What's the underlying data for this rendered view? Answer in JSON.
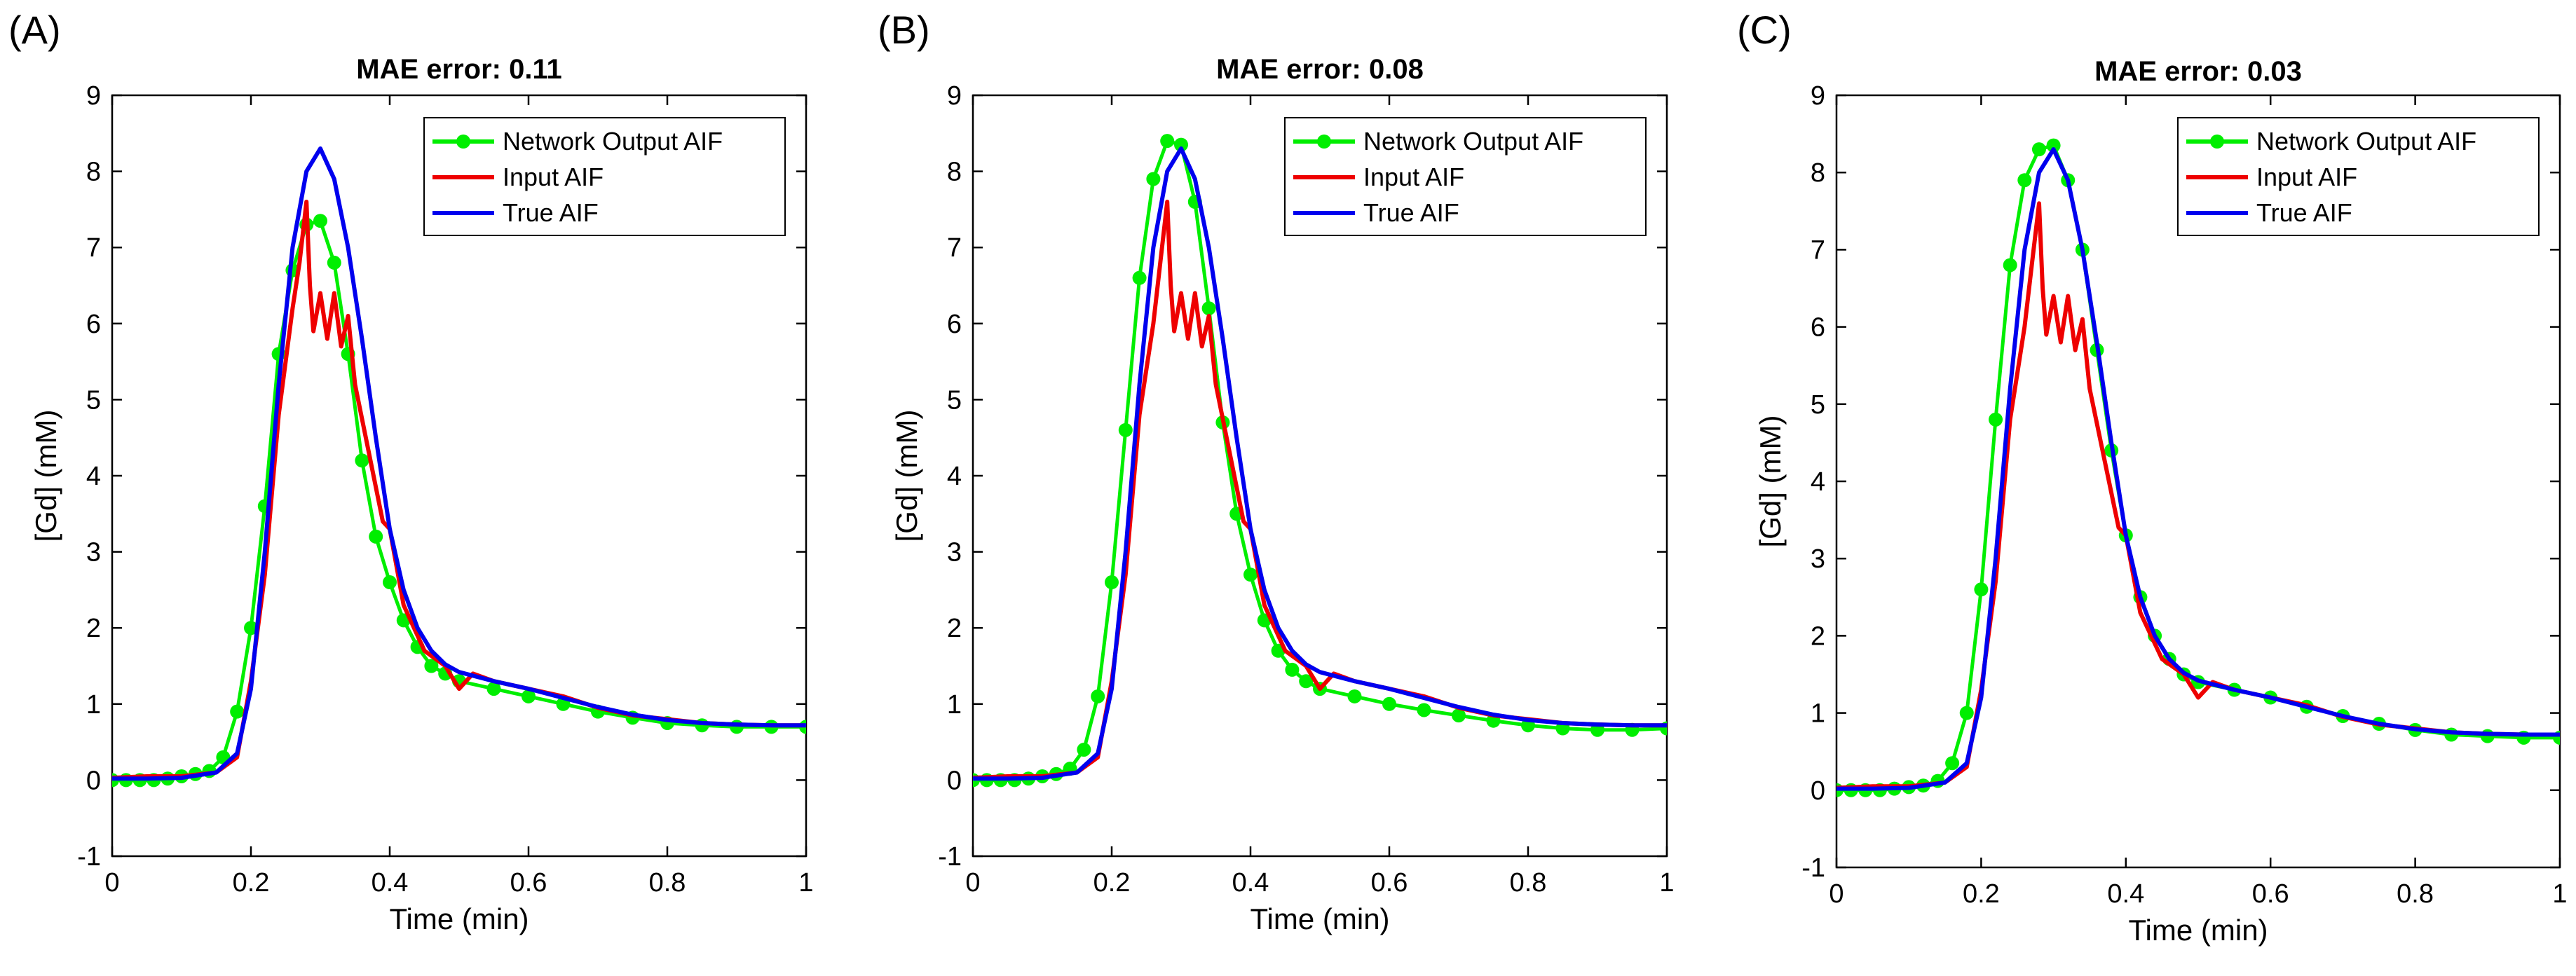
{
  "chart_data": [
    {
      "panel": "(A)",
      "type": "line",
      "title": "MAE error: 0.11",
      "xlabel": "Time (min)",
      "ylabel": "[Gd] (mM)",
      "xlim": [
        0,
        1
      ],
      "ylim": [
        -1,
        9
      ],
      "xticks": [
        "0",
        "0.2",
        "0.4",
        "0.6",
        "0.8",
        "1"
      ],
      "yticks": [
        "-1",
        "0",
        "1",
        "2",
        "3",
        "4",
        "5",
        "6",
        "7",
        "8",
        "9"
      ],
      "legend_position": "top-right",
      "series": [
        {
          "name": "Network Output AIF",
          "color": "#00ee00",
          "marker": "circle",
          "x": [
            0,
            0.02,
            0.04,
            0.06,
            0.08,
            0.1,
            0.12,
            0.14,
            0.16,
            0.18,
            0.2,
            0.22,
            0.24,
            0.26,
            0.28,
            0.3,
            0.32,
            0.34,
            0.36,
            0.38,
            0.4,
            0.42,
            0.44,
            0.46,
            0.48,
            0.5,
            0.55,
            0.6,
            0.65,
            0.7,
            0.75,
            0.8,
            0.85,
            0.9,
            0.95,
            1.0
          ],
          "y": [
            0.0,
            0.0,
            0.0,
            0.0,
            0.02,
            0.05,
            0.08,
            0.12,
            0.3,
            0.9,
            2.0,
            3.6,
            5.6,
            6.7,
            7.3,
            7.35,
            6.8,
            5.6,
            4.2,
            3.2,
            2.6,
            2.1,
            1.75,
            1.5,
            1.4,
            1.3,
            1.2,
            1.1,
            1.0,
            0.9,
            0.82,
            0.75,
            0.72,
            0.7,
            0.7,
            0.7
          ]
        },
        {
          "name": "Input AIF",
          "color": "#ee0000",
          "marker": "none",
          "x": [
            0,
            0.05,
            0.1,
            0.15,
            0.18,
            0.2,
            0.22,
            0.24,
            0.26,
            0.27,
            0.28,
            0.285,
            0.29,
            0.3,
            0.31,
            0.32,
            0.33,
            0.34,
            0.35,
            0.37,
            0.39,
            0.4,
            0.42,
            0.45,
            0.48,
            0.5,
            0.52,
            0.55,
            0.6,
            0.65,
            0.7,
            0.75,
            0.8,
            0.85,
            0.9,
            0.95,
            1.0
          ],
          "y": [
            0.03,
            0.05,
            0.05,
            0.1,
            0.3,
            1.3,
            2.7,
            4.8,
            6.2,
            6.8,
            7.6,
            6.5,
            5.9,
            6.4,
            5.8,
            6.4,
            5.7,
            6.1,
            5.2,
            4.3,
            3.4,
            3.3,
            2.3,
            1.7,
            1.5,
            1.2,
            1.4,
            1.3,
            1.2,
            1.1,
            0.95,
            0.85,
            0.8,
            0.75,
            0.73,
            0.72,
            0.72
          ]
        },
        {
          "name": "True AIF",
          "color": "#0000ee",
          "marker": "none",
          "x": [
            0,
            0.05,
            0.1,
            0.15,
            0.18,
            0.2,
            0.22,
            0.24,
            0.26,
            0.28,
            0.3,
            0.32,
            0.34,
            0.36,
            0.38,
            0.4,
            0.42,
            0.44,
            0.46,
            0.48,
            0.5,
            0.55,
            0.6,
            0.65,
            0.7,
            0.75,
            0.8,
            0.85,
            0.9,
            0.95,
            1.0
          ],
          "y": [
            0.02,
            0.02,
            0.03,
            0.1,
            0.35,
            1.2,
            3.0,
            5.2,
            7.0,
            8.0,
            8.3,
            7.9,
            7.0,
            5.8,
            4.5,
            3.3,
            2.5,
            2.0,
            1.7,
            1.52,
            1.42,
            1.3,
            1.2,
            1.08,
            0.96,
            0.86,
            0.79,
            0.75,
            0.73,
            0.72,
            0.72
          ]
        }
      ]
    },
    {
      "panel": "(B)",
      "type": "line",
      "title": "MAE error: 0.08",
      "xlabel": "Time (min)",
      "ylabel": "[Gd] (mM)",
      "xlim": [
        0,
        1
      ],
      "ylim": [
        -1,
        9
      ],
      "xticks": [
        "0",
        "0.2",
        "0.4",
        "0.6",
        "0.8",
        "1"
      ],
      "yticks": [
        "-1",
        "0",
        "1",
        "2",
        "3",
        "4",
        "5",
        "6",
        "7",
        "8",
        "9"
      ],
      "legend_position": "top-right",
      "series": [
        {
          "name": "Network Output AIF",
          "color": "#00ee00",
          "marker": "circle",
          "x": [
            0,
            0.02,
            0.04,
            0.06,
            0.08,
            0.1,
            0.12,
            0.14,
            0.16,
            0.18,
            0.2,
            0.22,
            0.24,
            0.26,
            0.28,
            0.3,
            0.32,
            0.34,
            0.36,
            0.38,
            0.4,
            0.42,
            0.44,
            0.46,
            0.48,
            0.5,
            0.55,
            0.6,
            0.65,
            0.7,
            0.75,
            0.8,
            0.85,
            0.9,
            0.95,
            1.0
          ],
          "y": [
            0.0,
            0.0,
            0.0,
            0.0,
            0.02,
            0.05,
            0.08,
            0.15,
            0.4,
            1.1,
            2.6,
            4.6,
            6.6,
            7.9,
            8.4,
            8.35,
            7.6,
            6.2,
            4.7,
            3.5,
            2.7,
            2.1,
            1.7,
            1.45,
            1.3,
            1.2,
            1.1,
            1.0,
            0.92,
            0.85,
            0.78,
            0.72,
            0.68,
            0.66,
            0.66,
            0.68
          ]
        },
        {
          "name": "Input AIF",
          "color": "#ee0000",
          "marker": "none",
          "x": [
            0,
            0.05,
            0.1,
            0.15,
            0.18,
            0.2,
            0.22,
            0.24,
            0.26,
            0.27,
            0.28,
            0.285,
            0.29,
            0.3,
            0.31,
            0.32,
            0.33,
            0.34,
            0.35,
            0.37,
            0.39,
            0.4,
            0.42,
            0.45,
            0.48,
            0.5,
            0.52,
            0.55,
            0.6,
            0.65,
            0.7,
            0.75,
            0.8,
            0.85,
            0.9,
            0.95,
            1.0
          ],
          "y": [
            0.03,
            0.05,
            0.05,
            0.1,
            0.3,
            1.3,
            2.7,
            4.8,
            6.0,
            6.8,
            7.6,
            6.5,
            5.9,
            6.4,
            5.8,
            6.4,
            5.7,
            6.1,
            5.2,
            4.3,
            3.4,
            3.3,
            2.3,
            1.7,
            1.5,
            1.2,
            1.4,
            1.3,
            1.2,
            1.1,
            0.95,
            0.85,
            0.8,
            0.75,
            0.73,
            0.72,
            0.72
          ]
        },
        {
          "name": "True AIF",
          "color": "#0000ee",
          "marker": "none",
          "x": [
            0,
            0.05,
            0.1,
            0.15,
            0.18,
            0.2,
            0.22,
            0.24,
            0.26,
            0.28,
            0.3,
            0.32,
            0.34,
            0.36,
            0.38,
            0.4,
            0.42,
            0.44,
            0.46,
            0.48,
            0.5,
            0.55,
            0.6,
            0.65,
            0.7,
            0.75,
            0.8,
            0.85,
            0.9,
            0.95,
            1.0
          ],
          "y": [
            0.02,
            0.02,
            0.03,
            0.1,
            0.35,
            1.2,
            3.0,
            5.2,
            7.0,
            8.0,
            8.3,
            7.9,
            7.0,
            5.8,
            4.5,
            3.3,
            2.5,
            2.0,
            1.7,
            1.52,
            1.42,
            1.3,
            1.2,
            1.08,
            0.96,
            0.86,
            0.79,
            0.75,
            0.73,
            0.72,
            0.72
          ]
        }
      ]
    },
    {
      "panel": "(C)",
      "type": "line",
      "title": "MAE error: 0.03",
      "xlabel": "Time (min)",
      "ylabel": "[Gd] (mM)",
      "xlim": [
        0,
        1
      ],
      "ylim": [
        -1,
        9
      ],
      "xticks": [
        "0",
        "0.2",
        "0.4",
        "0.6",
        "0.8",
        "1"
      ],
      "yticks": [
        "-1",
        "0",
        "1",
        "2",
        "3",
        "4",
        "5",
        "6",
        "7",
        "8",
        "9"
      ],
      "legend_position": "top-right",
      "series": [
        {
          "name": "Network Output AIF",
          "color": "#00ee00",
          "marker": "circle",
          "x": [
            0,
            0.02,
            0.04,
            0.06,
            0.08,
            0.1,
            0.12,
            0.14,
            0.16,
            0.18,
            0.2,
            0.22,
            0.24,
            0.26,
            0.28,
            0.3,
            0.32,
            0.34,
            0.36,
            0.38,
            0.4,
            0.42,
            0.44,
            0.46,
            0.48,
            0.5,
            0.55,
            0.6,
            0.65,
            0.7,
            0.75,
            0.8,
            0.85,
            0.9,
            0.95,
            1.0
          ],
          "y": [
            0.0,
            0.0,
            0.0,
            0.0,
            0.02,
            0.04,
            0.06,
            0.12,
            0.35,
            1.0,
            2.6,
            4.8,
            6.8,
            7.9,
            8.3,
            8.35,
            7.9,
            7.0,
            5.7,
            4.4,
            3.3,
            2.5,
            2.0,
            1.7,
            1.5,
            1.4,
            1.3,
            1.2,
            1.08,
            0.96,
            0.86,
            0.78,
            0.72,
            0.7,
            0.68,
            0.68
          ]
        },
        {
          "name": "Input AIF",
          "color": "#ee0000",
          "marker": "none",
          "x": [
            0,
            0.05,
            0.1,
            0.15,
            0.18,
            0.2,
            0.22,
            0.24,
            0.26,
            0.27,
            0.28,
            0.285,
            0.29,
            0.3,
            0.31,
            0.32,
            0.33,
            0.34,
            0.35,
            0.37,
            0.39,
            0.4,
            0.42,
            0.45,
            0.48,
            0.5,
            0.52,
            0.55,
            0.6,
            0.65,
            0.7,
            0.75,
            0.8,
            0.85,
            0.9,
            0.95,
            1.0
          ],
          "y": [
            0.03,
            0.05,
            0.05,
            0.1,
            0.3,
            1.3,
            2.7,
            4.8,
            6.0,
            6.8,
            7.6,
            6.5,
            5.9,
            6.4,
            5.8,
            6.4,
            5.7,
            6.1,
            5.2,
            4.3,
            3.4,
            3.3,
            2.3,
            1.7,
            1.5,
            1.2,
            1.4,
            1.3,
            1.2,
            1.1,
            0.95,
            0.85,
            0.8,
            0.75,
            0.73,
            0.72,
            0.72
          ]
        },
        {
          "name": "True AIF",
          "color": "#0000ee",
          "marker": "none",
          "x": [
            0,
            0.05,
            0.1,
            0.15,
            0.18,
            0.2,
            0.22,
            0.24,
            0.26,
            0.28,
            0.3,
            0.32,
            0.34,
            0.36,
            0.38,
            0.4,
            0.42,
            0.44,
            0.46,
            0.48,
            0.5,
            0.55,
            0.6,
            0.65,
            0.7,
            0.75,
            0.8,
            0.85,
            0.9,
            0.95,
            1.0
          ],
          "y": [
            0.02,
            0.02,
            0.03,
            0.1,
            0.35,
            1.2,
            3.0,
            5.2,
            7.0,
            8.0,
            8.3,
            7.9,
            7.0,
            5.8,
            4.5,
            3.3,
            2.5,
            2.0,
            1.7,
            1.52,
            1.42,
            1.3,
            1.2,
            1.08,
            0.96,
            0.86,
            0.79,
            0.75,
            0.73,
            0.72,
            0.72
          ]
        }
      ]
    }
  ]
}
